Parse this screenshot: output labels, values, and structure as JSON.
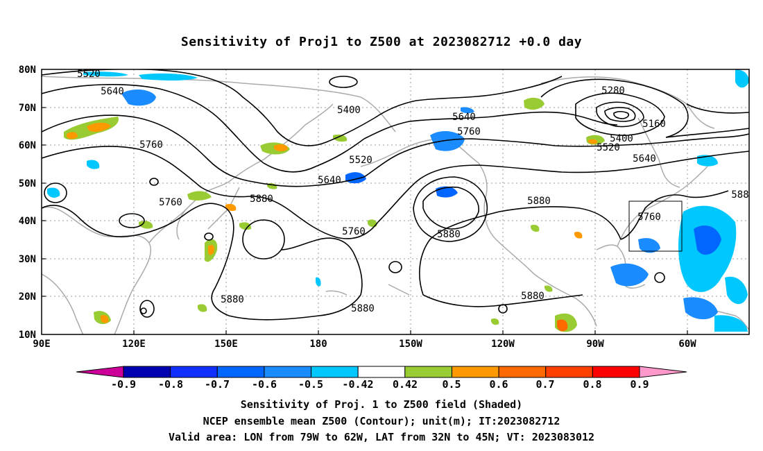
{
  "title": "Sensitivity of Proj1 to Z500 at 2023082712 +0.0 day",
  "map": {
    "lat_labels": [
      "80N",
      "70N",
      "60N",
      "50N",
      "40N",
      "30N",
      "20N",
      "10N"
    ],
    "lon_labels": [
      "90E",
      "120E",
      "150E",
      "180",
      "150W",
      "120W",
      "90W",
      "60W"
    ],
    "valid_box": {
      "lon_range": [
        "79W",
        "62W"
      ],
      "lat_range": [
        "32N",
        "45N"
      ]
    },
    "contour_labels": [
      "5520",
      "5640",
      "5760",
      "5400",
      "5640",
      "5760",
      "5520",
      "5640",
      "5880",
      "5760",
      "5880",
      "5760",
      "5880",
      "5880",
      "5880",
      "5880",
      "5280",
      "5160",
      "5400",
      "5520",
      "5640",
      "5760",
      "588"
    ],
    "colors": {
      "neg_strong": "#0000aa",
      "neg_mid": "#0050ff",
      "neg_light": "#00c0ff",
      "pos_green": "#99cc33",
      "pos_orange": "#ff8800",
      "pos_red": "#ff3300",
      "coast": "#aaaaaa",
      "contour": "#000000"
    }
  },
  "colorbar": {
    "labels": [
      "-0.9",
      "-0.8",
      "-0.7",
      "-0.6",
      "-0.5",
      "-0.42",
      "0.42",
      "0.5",
      "0.6",
      "0.7",
      "0.8",
      "0.9"
    ],
    "colors": [
      "#0000b0",
      "#1030ff",
      "#0066ff",
      "#1a8cff",
      "#00c8ff",
      "#ffffff",
      "#99cc33",
      "#ff9900",
      "#ff6a00",
      "#ff4000",
      "#ff0000"
    ],
    "under_color": "#cc0099",
    "over_color": "#ff99cc"
  },
  "captions": {
    "line1": "Sensitivity of Proj. 1 to Z500 field (Shaded)",
    "line2": "NCEP ensemble mean Z500 (Contour); unit(m); IT:2023082712",
    "line3": "Valid area: LON from 79W to 62W, LAT from 32N to 45N; VT: 2023083012"
  }
}
